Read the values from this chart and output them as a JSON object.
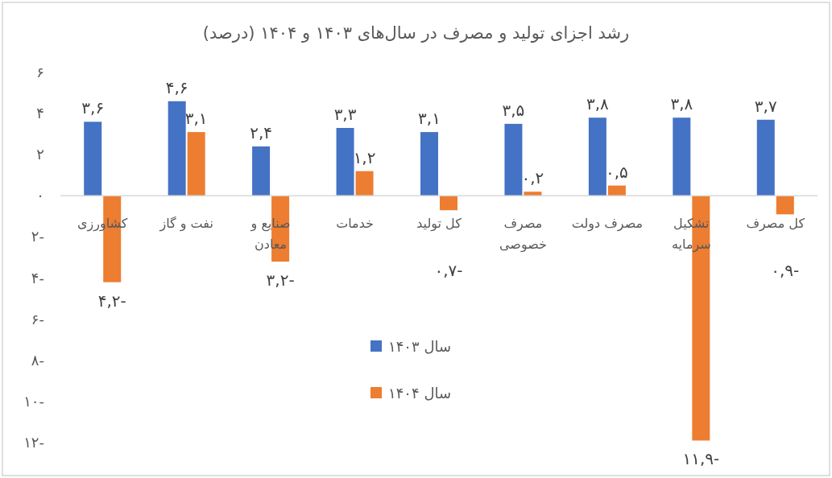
{
  "chart_data": {
    "type": "bar",
    "title": "رشد اجزای تولید و مصرف در سال‌های ۱۴۰۳ و ۱۴۰۴ (درصد)",
    "categories": [
      "کشاورزی",
      "نفت و گاز",
      "صنایع و معادن",
      "خدمات",
      "کل تولید",
      "مصرف خصوصی",
      "مصرف دولت",
      "تشکیل سرمایه",
      "کل مصرف"
    ],
    "series": [
      {
        "name": "سال ۱۴۰۳",
        "color": "#4472c4",
        "values": [
          3.6,
          4.6,
          2.4,
          3.3,
          3.1,
          3.5,
          3.8,
          3.8,
          3.7
        ],
        "value_labels": [
          "۳,۶",
          "۴,۶",
          "۲,۴",
          "۳,۳",
          "۳,۱",
          "۳,۵",
          "۳,۸",
          "۳,۸",
          "۳,۷"
        ]
      },
      {
        "name": "سال ۱۴۰۴",
        "color": "#ed7d31",
        "values": [
          -4.2,
          3.1,
          -3.2,
          1.2,
          -0.7,
          0.2,
          0.5,
          -11.9,
          -0.9
        ],
        "value_labels": [
          "-۴,۲",
          "۳,۱",
          "-۳,۲",
          "۱,۲",
          "-۰,۷",
          "۰,۲",
          "۰,۵",
          "-۱۱,۹",
          "-۰,۹"
        ]
      }
    ],
    "ylim": [
      -12,
      6
    ],
    "yticks": [
      {
        "value": 6,
        "label": "۶"
      },
      {
        "value": 4,
        "label": "۴"
      },
      {
        "value": 2,
        "label": "۲"
      },
      {
        "value": 0,
        "label": "۰"
      },
      {
        "value": -2,
        "label": "۲-"
      },
      {
        "value": -4,
        "label": "۴-"
      },
      {
        "value": -6,
        "label": "۶-"
      },
      {
        "value": -8,
        "label": "۸-"
      },
      {
        "value": -10,
        "label": "۱۰-"
      },
      {
        "value": -12,
        "label": "۱۲-"
      }
    ],
    "grid": false,
    "legend": "bottom"
  }
}
